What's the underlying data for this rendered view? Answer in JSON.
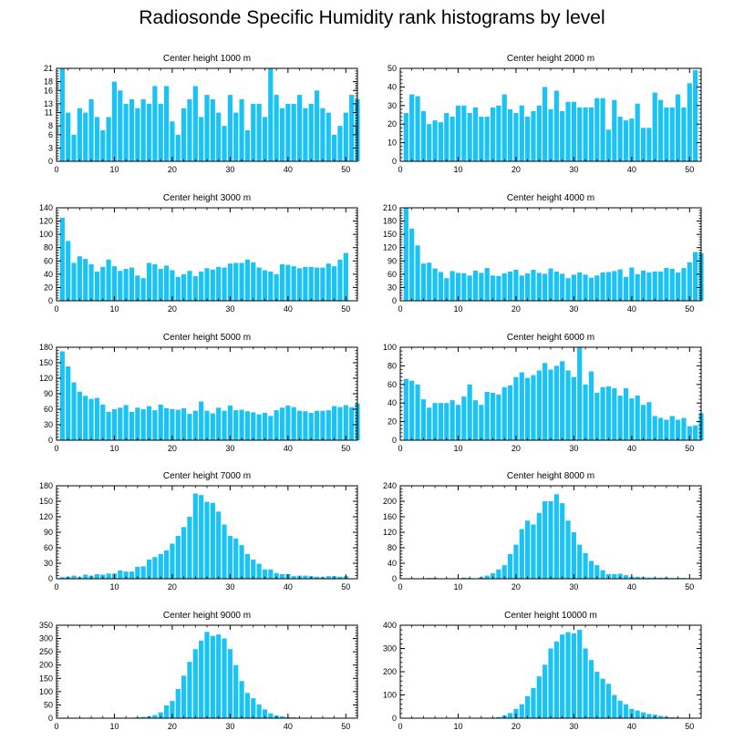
{
  "title": "Radiosonde Specific Humidity rank histograms by level",
  "bar_color": "#19c3f5",
  "chart_data": [
    {
      "type": "bar",
      "title": "Center height 1000 m",
      "xlim": [
        0,
        52
      ],
      "ylim": [
        0,
        21
      ],
      "yticks": [
        0,
        3,
        6,
        8,
        11,
        13,
        16,
        18,
        21
      ],
      "xticks": [
        0,
        10,
        20,
        30,
        40,
        50
      ],
      "values": [
        21,
        11,
        6,
        12,
        11,
        14,
        10,
        7,
        10,
        18,
        16,
        13,
        14,
        12,
        14,
        13,
        17,
        13,
        17,
        9,
        6,
        12,
        14,
        17,
        10,
        15,
        14,
        11,
        8,
        15,
        11,
        14,
        7,
        13,
        13,
        10,
        21,
        15,
        12,
        13,
        13,
        15,
        12,
        13,
        16,
        12,
        11,
        6,
        8,
        11,
        15,
        14
      ]
    },
    {
      "type": "bar",
      "title": "Center height 2000 m",
      "xlim": [
        0,
        52
      ],
      "ylim": [
        0,
        50
      ],
      "yticks": [
        0,
        10,
        20,
        30,
        40,
        50
      ],
      "xticks": [
        0,
        10,
        20,
        30,
        40,
        50
      ],
      "values": [
        26,
        36,
        35,
        27,
        20,
        22,
        21,
        26,
        24,
        30,
        30,
        26,
        29,
        24,
        24,
        29,
        30,
        36,
        28,
        26,
        30,
        24,
        27,
        30,
        40,
        28,
        38,
        27,
        32,
        32,
        29,
        29,
        29,
        34,
        34,
        17,
        33,
        24,
        22,
        23,
        31,
        18,
        18,
        37,
        33,
        29,
        29,
        36,
        29,
        42,
        49
      ]
    },
    {
      "type": "bar",
      "title": "Center height 3000 m",
      "xlim": [
        0,
        52
      ],
      "ylim": [
        0,
        140
      ],
      "yticks": [
        0,
        20,
        40,
        60,
        80,
        100,
        120,
        140
      ],
      "xticks": [
        0,
        10,
        20,
        30,
        40,
        50
      ],
      "values": [
        125,
        90,
        57,
        67,
        63,
        55,
        44,
        51,
        62,
        52,
        45,
        48,
        50,
        38,
        34,
        57,
        55,
        48,
        53,
        46,
        36,
        40,
        45,
        37,
        44,
        49,
        47,
        51,
        50,
        56,
        57,
        57,
        62,
        58,
        50,
        46,
        44,
        40,
        55,
        54,
        52,
        49,
        51,
        51,
        50,
        50,
        56,
        52,
        62,
        72
      ]
    },
    {
      "type": "bar",
      "title": "Center height 4000 m",
      "xlim": [
        0,
        52
      ],
      "ylim": [
        0,
        210
      ],
      "yticks": [
        0,
        30,
        60,
        90,
        120,
        150,
        180,
        210
      ],
      "xticks": [
        0,
        10,
        20,
        30,
        40,
        50
      ],
      "values": [
        210,
        163,
        125,
        84,
        86,
        73,
        65,
        51,
        67,
        63,
        62,
        57,
        68,
        63,
        74,
        57,
        56,
        62,
        66,
        70,
        57,
        62,
        70,
        63,
        61,
        73,
        66,
        61,
        51,
        59,
        64,
        59,
        52,
        57,
        64,
        65,
        67,
        71,
        54,
        75,
        60,
        68,
        64,
        66,
        66,
        74,
        72,
        64,
        74,
        87,
        110,
        107
      ]
    },
    {
      "type": "bar",
      "title": "Center height 5000 m",
      "xlim": [
        0,
        52
      ],
      "ylim": [
        0,
        180
      ],
      "yticks": [
        0,
        30,
        60,
        90,
        120,
        150,
        180
      ],
      "xticks": [
        0,
        10,
        20,
        30,
        40,
        50
      ],
      "values": [
        172,
        143,
        112,
        94,
        86,
        80,
        82,
        69,
        55,
        60,
        63,
        68,
        55,
        63,
        60,
        66,
        58,
        69,
        62,
        60,
        59,
        62,
        51,
        57,
        75,
        57,
        52,
        63,
        57,
        67,
        58,
        59,
        56,
        54,
        50,
        53,
        47,
        58,
        63,
        67,
        64,
        57,
        56,
        53,
        57,
        57,
        58,
        66,
        64,
        68,
        64,
        71
      ]
    },
    {
      "type": "bar",
      "title": "Center height 6000 m",
      "xlim": [
        0,
        52
      ],
      "ylim": [
        0,
        100
      ],
      "yticks": [
        0,
        20,
        40,
        60,
        80,
        100
      ],
      "xticks": [
        0,
        10,
        20,
        30,
        40,
        50
      ],
      "values": [
        66,
        64,
        60,
        44,
        35,
        40,
        40,
        40,
        43,
        38,
        47,
        60,
        43,
        38,
        52,
        51,
        49,
        57,
        59,
        68,
        73,
        67,
        70,
        75,
        83,
        76,
        80,
        85,
        75,
        68,
        100,
        60,
        74,
        51,
        57,
        58,
        56,
        48,
        56,
        45,
        48,
        38,
        41,
        26,
        24,
        22,
        26,
        22,
        24,
        15,
        16,
        29
      ]
    },
    {
      "type": "bar",
      "title": "Center height 7000 m",
      "xlim": [
        0,
        52
      ],
      "ylim": [
        0,
        180
      ],
      "yticks": [
        0,
        30,
        60,
        90,
        120,
        150,
        180
      ],
      "xticks": [
        0,
        10,
        20,
        30,
        40,
        50
      ],
      "values": [
        3,
        4,
        6,
        3,
        8,
        6,
        9,
        8,
        10,
        10,
        16,
        14,
        14,
        23,
        24,
        37,
        42,
        48,
        55,
        68,
        83,
        100,
        120,
        165,
        162,
        149,
        147,
        130,
        105,
        83,
        78,
        65,
        48,
        37,
        29,
        18,
        18,
        11,
        9,
        9,
        5,
        6,
        6,
        5,
        4,
        3,
        5,
        5,
        4,
        5
      ]
    },
    {
      "type": "bar",
      "title": "Center height 8000 m",
      "xlim": [
        0,
        52
      ],
      "ylim": [
        0,
        240
      ],
      "yticks": [
        0,
        40,
        80,
        120,
        160,
        200,
        240
      ],
      "xticks": [
        0,
        10,
        20,
        30,
        40,
        50
      ],
      "values": [
        1,
        1,
        1,
        1,
        2,
        2,
        1,
        1,
        1,
        1,
        3,
        2,
        1,
        4,
        8,
        14,
        24,
        35,
        64,
        88,
        128,
        150,
        140,
        170,
        200,
        200,
        218,
        195,
        150,
        120,
        88,
        66,
        46,
        35,
        22,
        12,
        12,
        13,
        9,
        5,
        5,
        4,
        3,
        3,
        3,
        3,
        2,
        2,
        2,
        1,
        1
      ]
    },
    {
      "type": "bar",
      "title": "Center height 9000 m",
      "xlim": [
        0,
        52
      ],
      "ylim": [
        0,
        350
      ],
      "yticks": [
        0,
        50,
        100,
        150,
        200,
        250,
        300,
        350
      ],
      "xticks": [
        0,
        10,
        20,
        30,
        40,
        50
      ],
      "values": [
        1,
        1,
        1,
        1,
        1,
        1,
        1,
        1,
        1,
        1,
        1,
        1,
        2,
        3,
        5,
        7,
        12,
        22,
        48,
        65,
        110,
        160,
        212,
        260,
        292,
        325,
        310,
        315,
        300,
        260,
        200,
        140,
        95,
        75,
        52,
        33,
        18,
        10,
        7,
        4,
        3,
        2,
        2,
        1,
        1,
        1,
        1,
        1,
        1,
        1,
        1
      ]
    },
    {
      "type": "bar",
      "title": "Center height 10000 m",
      "xlim": [
        0,
        52
      ],
      "ylim": [
        0,
        400
      ],
      "yticks": [
        0,
        100,
        200,
        300,
        400
      ],
      "xticks": [
        0,
        10,
        20,
        30,
        40,
        50
      ],
      "values": [
        1,
        1,
        1,
        1,
        1,
        1,
        1,
        1,
        1,
        1,
        1,
        1,
        1,
        1,
        1,
        2,
        5,
        12,
        22,
        40,
        60,
        95,
        130,
        180,
        230,
        300,
        330,
        360,
        370,
        365,
        380,
        300,
        250,
        200,
        170,
        148,
        100,
        75,
        60,
        40,
        33,
        25,
        18,
        15,
        10,
        6,
        4,
        3,
        2,
        1,
        1
      ]
    }
  ]
}
